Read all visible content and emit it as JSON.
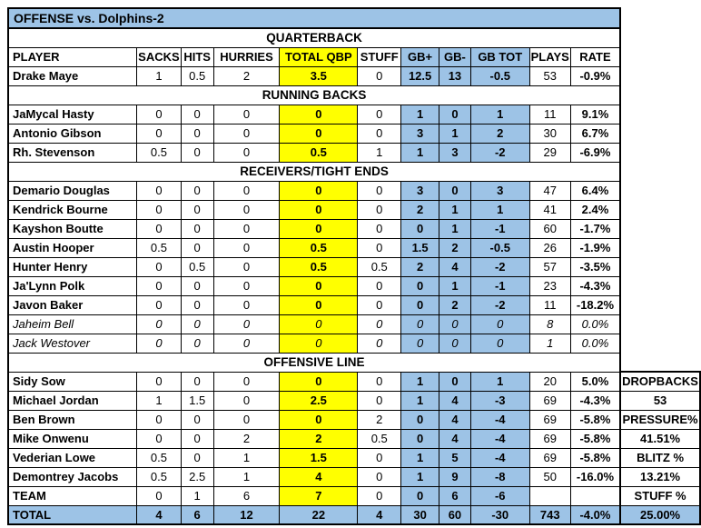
{
  "title": "OFFENSE vs. Dolphins-2",
  "colors": {
    "header_blue": "#9DC3E6",
    "highlight_yellow": "#FFFF00",
    "border_black": "#000000"
  },
  "table": {
    "columns": [
      "PLAYER",
      "SACKS",
      "HITS",
      "HURRIES",
      "TOTAL QBP",
      "STUFF",
      "GB+",
      "GB-",
      "GB TOT",
      "PLAYS",
      "RATE"
    ],
    "sections": [
      {
        "label": "QUARTERBACK",
        "rows": [
          {
            "player": "Drake Maye",
            "values": [
              "1",
              "0.5",
              "2",
              "3.5",
              "0",
              "12.5",
              "13",
              "-0.5",
              "53",
              "-0.9%"
            ]
          }
        ]
      },
      {
        "label": "RUNNING BACKS",
        "rows": [
          {
            "player": "JaMycal Hasty",
            "values": [
              "0",
              "0",
              "0",
              "0",
              "0",
              "1",
              "0",
              "1",
              "11",
              "9.1%"
            ]
          },
          {
            "player": "Antonio Gibson",
            "values": [
              "0",
              "0",
              "0",
              "0",
              "0",
              "3",
              "1",
              "2",
              "30",
              "6.7%"
            ]
          },
          {
            "player": "Rh. Stevenson",
            "values": [
              "0.5",
              "0",
              "0",
              "0.5",
              "1",
              "1",
              "3",
              "-2",
              "29",
              "-6.9%"
            ]
          }
        ]
      },
      {
        "label": "RECEIVERS/TIGHT ENDS",
        "rows": [
          {
            "player": "Demario Douglas",
            "values": [
              "0",
              "0",
              "0",
              "0",
              "0",
              "3",
              "0",
              "3",
              "47",
              "6.4%"
            ]
          },
          {
            "player": "Kendrick Bourne",
            "values": [
              "0",
              "0",
              "0",
              "0",
              "0",
              "2",
              "1",
              "1",
              "41",
              "2.4%"
            ]
          },
          {
            "player": "Kayshon Boutte",
            "values": [
              "0",
              "0",
              "0",
              "0",
              "0",
              "0",
              "1",
              "-1",
              "60",
              "-1.7%"
            ]
          },
          {
            "player": "Austin Hooper",
            "values": [
              "0.5",
              "0",
              "0",
              "0.5",
              "0",
              "1.5",
              "2",
              "-0.5",
              "26",
              "-1.9%"
            ]
          },
          {
            "player": "Hunter Henry",
            "values": [
              "0",
              "0.5",
              "0",
              "0.5",
              "0.5",
              "2",
              "4",
              "-2",
              "57",
              "-3.5%"
            ]
          },
          {
            "player": "Ja'Lynn Polk",
            "values": [
              "0",
              "0",
              "0",
              "0",
              "0",
              "0",
              "1",
              "-1",
              "23",
              "-4.3%"
            ]
          },
          {
            "player": "Javon Baker",
            "values": [
              "0",
              "0",
              "0",
              "0",
              "0",
              "0",
              "2",
              "-2",
              "11",
              "-18.2%"
            ]
          },
          {
            "player": "Jaheim Bell",
            "italic": true,
            "values": [
              "0",
              "0",
              "0",
              "0",
              "0",
              "0",
              "0",
              "0",
              "8",
              "0.0%"
            ]
          },
          {
            "player": "Jack Westover",
            "italic": true,
            "values": [
              "0",
              "0",
              "0",
              "0",
              "0",
              "0",
              "0",
              "0",
              "1",
              "0.0%"
            ]
          }
        ]
      },
      {
        "label": "OFFENSIVE LINE",
        "rows": [
          {
            "player": "Sidy Sow",
            "values": [
              "0",
              "0",
              "0",
              "0",
              "0",
              "1",
              "0",
              "1",
              "20",
              "5.0%"
            ]
          },
          {
            "player": "Michael Jordan",
            "values": [
              "1",
              "1.5",
              "0",
              "2.5",
              "0",
              "1",
              "4",
              "-3",
              "69",
              "-4.3%"
            ]
          },
          {
            "player": "Ben Brown",
            "values": [
              "0",
              "0",
              "0",
              "0",
              "2",
              "0",
              "4",
              "-4",
              "69",
              "-5.8%"
            ]
          },
          {
            "player": "Mike Onwenu",
            "values": [
              "0",
              "0",
              "2",
              "2",
              "0.5",
              "0",
              "4",
              "-4",
              "69",
              "-5.8%"
            ]
          },
          {
            "player": "Vederian Lowe",
            "values": [
              "0.5",
              "0",
              "1",
              "1.5",
              "0",
              "1",
              "5",
              "-4",
              "69",
              "-5.8%"
            ]
          },
          {
            "player": "Demontrey Jacobs",
            "values": [
              "0.5",
              "2.5",
              "1",
              "4",
              "0",
              "1",
              "9",
              "-8",
              "50",
              "-16.0%"
            ]
          },
          {
            "player": "TEAM",
            "values": [
              "0",
              "1",
              "6",
              "7",
              "0",
              "0",
              "6",
              "-6",
              "",
              ""
            ]
          }
        ]
      }
    ],
    "total_row": {
      "player": "TOTAL",
      "values": [
        "4",
        "6",
        "12",
        "22",
        "4",
        "30",
        "60",
        "-30",
        "743",
        "-4.0%"
      ]
    }
  },
  "side_panel": {
    "rows": [
      "DROPBACKS",
      "53",
      "PRESSURE%",
      "41.51%",
      "BLITZ %",
      "13.21%",
      "STUFF %",
      "25.00%"
    ]
  }
}
